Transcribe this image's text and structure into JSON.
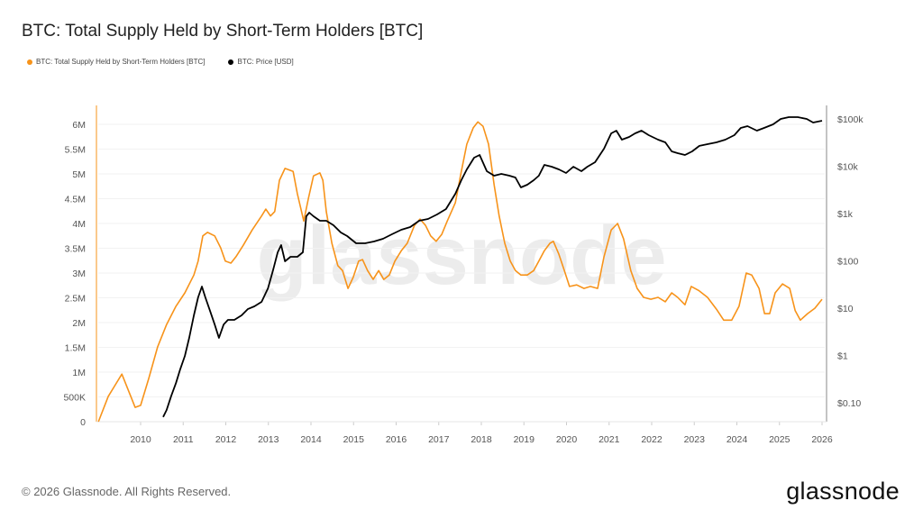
{
  "title": "BTC: Total Supply Held by Short-Term Holders [BTC]",
  "footer": "© 2026 Glassnode. All Rights Reserved.",
  "logo": "glassnode",
  "watermark": "glassnode",
  "chart_data": {
    "type": "line",
    "title": "BTC: Total Supply Held by Short-Term Holders [BTC]",
    "legend_position": "top-left",
    "grid": true,
    "x_ticks": [
      "2010",
      "2011",
      "2012",
      "2013",
      "2014",
      "2015",
      "2016",
      "2017",
      "2018",
      "2019",
      "2020",
      "2021",
      "2022",
      "2023",
      "2024",
      "2025",
      "2026"
    ],
    "xlim": [
      2009.0,
      2026.1
    ],
    "y_left": {
      "ticks": [
        "0",
        "500K",
        "1M",
        "1.5M",
        "2M",
        "2.5M",
        "3M",
        "3.5M",
        "4M",
        "4.5M",
        "5M",
        "5.5M",
        "6M"
      ],
      "ylim": [
        0,
        6.4
      ],
      "unit": "M BTC",
      "scale": "linear"
    },
    "y_right": {
      "ticks": [
        "$0.10",
        "$1",
        "$10",
        "$100",
        "$1k",
        "$10k",
        "$100k"
      ],
      "ylim": [
        0.03,
        200000
      ],
      "scale": "log"
    },
    "series": [
      {
        "name": "BTC: Total Supply Held by Short-Term Holders [BTC]",
        "axis": "left",
        "color": "#f7931a",
        "points": [
          [
            2009.01,
            0
          ],
          [
            2009.24,
            0.51
          ],
          [
            2009.56,
            0.96
          ],
          [
            2009.77,
            0.51
          ],
          [
            2009.87,
            0.29
          ],
          [
            2010.0,
            0.33
          ],
          [
            2010.19,
            0.87
          ],
          [
            2010.4,
            1.51
          ],
          [
            2010.61,
            1.96
          ],
          [
            2010.83,
            2.33
          ],
          [
            2011.04,
            2.6
          ],
          [
            2011.25,
            2.96
          ],
          [
            2011.35,
            3.24
          ],
          [
            2011.46,
            3.75
          ],
          [
            2011.57,
            3.82
          ],
          [
            2011.74,
            3.75
          ],
          [
            2011.88,
            3.51
          ],
          [
            2011.99,
            3.24
          ],
          [
            2012.12,
            3.2
          ],
          [
            2012.24,
            3.33
          ],
          [
            2012.41,
            3.56
          ],
          [
            2012.62,
            3.87
          ],
          [
            2012.84,
            4.15
          ],
          [
            2012.94,
            4.29
          ],
          [
            2013.05,
            4.15
          ],
          [
            2013.15,
            4.24
          ],
          [
            2013.26,
            4.87
          ],
          [
            2013.39,
            5.11
          ],
          [
            2013.58,
            5.05
          ],
          [
            2013.68,
            4.6
          ],
          [
            2013.83,
            4.05
          ],
          [
            2013.94,
            4.51
          ],
          [
            2014.06,
            4.96
          ],
          [
            2014.21,
            5.02
          ],
          [
            2014.28,
            4.87
          ],
          [
            2014.36,
            4.24
          ],
          [
            2014.49,
            3.6
          ],
          [
            2014.63,
            3.15
          ],
          [
            2014.74,
            3.05
          ],
          [
            2014.87,
            2.69
          ],
          [
            2014.99,
            2.91
          ],
          [
            2015.12,
            3.24
          ],
          [
            2015.21,
            3.27
          ],
          [
            2015.33,
            3.05
          ],
          [
            2015.46,
            2.87
          ],
          [
            2015.59,
            3.05
          ],
          [
            2015.71,
            2.87
          ],
          [
            2015.84,
            2.96
          ],
          [
            2015.97,
            3.24
          ],
          [
            2016.12,
            3.45
          ],
          [
            2016.26,
            3.6
          ],
          [
            2016.43,
            3.96
          ],
          [
            2016.56,
            4.09
          ],
          [
            2016.69,
            3.96
          ],
          [
            2016.81,
            3.75
          ],
          [
            2016.94,
            3.64
          ],
          [
            2017.07,
            3.78
          ],
          [
            2017.2,
            4.05
          ],
          [
            2017.39,
            4.42
          ],
          [
            2017.53,
            5.05
          ],
          [
            2017.66,
            5.6
          ],
          [
            2017.81,
            5.93
          ],
          [
            2017.92,
            6.05
          ],
          [
            2018.04,
            5.96
          ],
          [
            2018.17,
            5.6
          ],
          [
            2018.3,
            4.78
          ],
          [
            2018.42,
            4.15
          ],
          [
            2018.55,
            3.6
          ],
          [
            2018.68,
            3.24
          ],
          [
            2018.8,
            3.05
          ],
          [
            2018.93,
            2.96
          ],
          [
            2019.08,
            2.96
          ],
          [
            2019.23,
            3.05
          ],
          [
            2019.35,
            3.24
          ],
          [
            2019.48,
            3.45
          ],
          [
            2019.61,
            3.6
          ],
          [
            2019.69,
            3.64
          ],
          [
            2019.82,
            3.38
          ],
          [
            2019.95,
            3.05
          ],
          [
            2020.07,
            2.73
          ],
          [
            2020.24,
            2.76
          ],
          [
            2020.41,
            2.69
          ],
          [
            2020.56,
            2.73
          ],
          [
            2020.73,
            2.69
          ],
          [
            2020.88,
            3.33
          ],
          [
            2021.05,
            3.87
          ],
          [
            2021.2,
            4.0
          ],
          [
            2021.34,
            3.69
          ],
          [
            2021.51,
            3.05
          ],
          [
            2021.66,
            2.69
          ],
          [
            2021.81,
            2.51
          ],
          [
            2021.98,
            2.47
          ],
          [
            2022.15,
            2.51
          ],
          [
            2022.32,
            2.42
          ],
          [
            2022.47,
            2.6
          ],
          [
            2022.61,
            2.51
          ],
          [
            2022.78,
            2.36
          ],
          [
            2022.93,
            2.73
          ],
          [
            2023.1,
            2.65
          ],
          [
            2023.31,
            2.51
          ],
          [
            2023.52,
            2.27
          ],
          [
            2023.69,
            2.05
          ],
          [
            2023.88,
            2.05
          ],
          [
            2024.05,
            2.33
          ],
          [
            2024.22,
            3.0
          ],
          [
            2024.35,
            2.96
          ],
          [
            2024.52,
            2.69
          ],
          [
            2024.65,
            2.18
          ],
          [
            2024.77,
            2.18
          ],
          [
            2024.9,
            2.6
          ],
          [
            2025.07,
            2.78
          ],
          [
            2025.24,
            2.69
          ],
          [
            2025.37,
            2.24
          ],
          [
            2025.49,
            2.05
          ],
          [
            2025.66,
            2.18
          ],
          [
            2025.83,
            2.29
          ],
          [
            2026.0,
            2.47
          ]
        ]
      },
      {
        "name": "BTC: Price [USD]",
        "axis": "right",
        "color": "#000000",
        "points": [
          [
            2010.53,
            0.05
          ],
          [
            2010.61,
            0.07
          ],
          [
            2010.72,
            0.14
          ],
          [
            2010.83,
            0.26
          ],
          [
            2010.93,
            0.51
          ],
          [
            2011.04,
            0.98
          ],
          [
            2011.14,
            2.35
          ],
          [
            2011.25,
            7.05
          ],
          [
            2011.35,
            16.9
          ],
          [
            2011.44,
            28.6
          ],
          [
            2011.52,
            16.9
          ],
          [
            2011.63,
            8.8
          ],
          [
            2011.74,
            4.5
          ],
          [
            2011.84,
            2.35
          ],
          [
            2011.95,
            4.5
          ],
          [
            2012.05,
            5.65
          ],
          [
            2012.2,
            5.65
          ],
          [
            2012.37,
            7.05
          ],
          [
            2012.52,
            9.6
          ],
          [
            2012.67,
            10.9
          ],
          [
            2012.84,
            13.6
          ],
          [
            2012.99,
            26.2
          ],
          [
            2013.11,
            63
          ],
          [
            2013.22,
            152
          ],
          [
            2013.3,
            215
          ],
          [
            2013.39,
            98
          ],
          [
            2013.52,
            122
          ],
          [
            2013.68,
            122
          ],
          [
            2013.81,
            152
          ],
          [
            2013.89,
            877
          ],
          [
            2013.96,
            1045
          ],
          [
            2014.06,
            877
          ],
          [
            2014.21,
            705
          ],
          [
            2014.36,
            705
          ],
          [
            2014.53,
            565
          ],
          [
            2014.7,
            398
          ],
          [
            2014.85,
            334
          ],
          [
            2015.06,
            235
          ],
          [
            2015.27,
            235
          ],
          [
            2015.48,
            257
          ],
          [
            2015.69,
            293
          ],
          [
            2015.9,
            365
          ],
          [
            2016.12,
            454
          ],
          [
            2016.33,
            518
          ],
          [
            2016.54,
            705
          ],
          [
            2016.75,
            769
          ],
          [
            2016.96,
            957
          ],
          [
            2017.17,
            1245
          ],
          [
            2017.39,
            2625
          ],
          [
            2017.53,
            5070
          ],
          [
            2017.66,
            8570
          ],
          [
            2017.83,
            15200
          ],
          [
            2017.96,
            17300
          ],
          [
            2018.13,
            7850
          ],
          [
            2018.3,
            6310
          ],
          [
            2018.47,
            6890
          ],
          [
            2018.66,
            6310
          ],
          [
            2018.8,
            5780
          ],
          [
            2018.93,
            3560
          ],
          [
            2019.08,
            4070
          ],
          [
            2019.23,
            5070
          ],
          [
            2019.35,
            6310
          ],
          [
            2019.48,
            10700
          ],
          [
            2019.65,
            9770
          ],
          [
            2019.82,
            8570
          ],
          [
            2019.99,
            7200
          ],
          [
            2020.16,
            9770
          ],
          [
            2020.35,
            7850
          ],
          [
            2020.49,
            9770
          ],
          [
            2020.67,
            12200
          ],
          [
            2020.88,
            23500
          ],
          [
            2021.05,
            49500
          ],
          [
            2021.17,
            56500
          ],
          [
            2021.3,
            36500
          ],
          [
            2021.47,
            41600
          ],
          [
            2021.61,
            49500
          ],
          [
            2021.76,
            56500
          ],
          [
            2021.93,
            45400
          ],
          [
            2022.15,
            36500
          ],
          [
            2022.32,
            32000
          ],
          [
            2022.47,
            20600
          ],
          [
            2022.61,
            18900
          ],
          [
            2022.78,
            17300
          ],
          [
            2022.95,
            20600
          ],
          [
            2023.12,
            26900
          ],
          [
            2023.31,
            29300
          ],
          [
            2023.52,
            32000
          ],
          [
            2023.73,
            36500
          ],
          [
            2023.94,
            45400
          ],
          [
            2024.09,
            64500
          ],
          [
            2024.25,
            70500
          ],
          [
            2024.47,
            56500
          ],
          [
            2024.64,
            64500
          ],
          [
            2024.85,
            76900
          ],
          [
            2025.03,
            100000
          ],
          [
            2025.22,
            109000
          ],
          [
            2025.43,
            109000
          ],
          [
            2025.64,
            100000
          ],
          [
            2025.79,
            84000
          ],
          [
            2026.0,
            91600
          ]
        ]
      }
    ]
  }
}
